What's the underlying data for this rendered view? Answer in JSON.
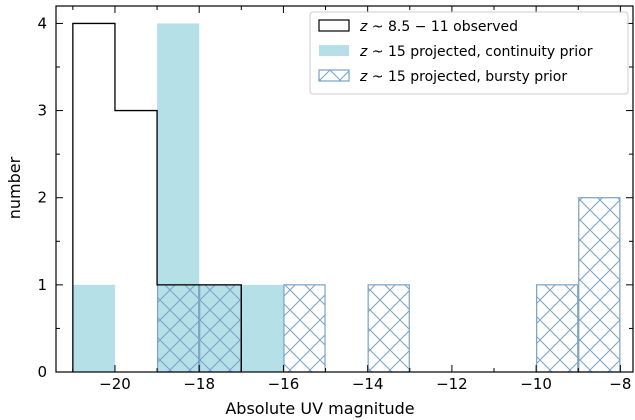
{
  "chart_data": {
    "type": "bar",
    "xlabel": "Absolute UV magnitude",
    "ylabel": "number",
    "xlim": [
      -21.4,
      -7.7
    ],
    "ylim": [
      0,
      4.2
    ],
    "xticks": [
      -20,
      -18,
      -16,
      -14,
      -12,
      -10,
      -8
    ],
    "xtick_labels": [
      "−20",
      "−18",
      "−16",
      "−14",
      "−12",
      "−10",
      "−8"
    ],
    "yticks": [
      0,
      1,
      2,
      3,
      4
    ],
    "ytick_labels": [
      "0",
      "1",
      "2",
      "3",
      "4"
    ],
    "bin_edges": [
      -21,
      -20,
      -19,
      -18,
      -17,
      -16,
      -15,
      -14,
      -13,
      -12,
      -11,
      -10,
      -9,
      -8
    ],
    "legend_position": "upper-right",
    "series": [
      {
        "name": "z ~ 8.5 − 11 observed",
        "style": "step",
        "color": "#000000",
        "bins": [
          [
            -21,
            -20,
            4
          ],
          [
            -20,
            -19,
            3
          ],
          [
            -19,
            -18,
            1
          ],
          [
            -18,
            -17,
            1
          ]
        ]
      },
      {
        "name": "z ~ 15 projected, continuity prior",
        "style": "filled",
        "color": "#b6e0e8",
        "bins": [
          [
            -21,
            -20,
            1
          ],
          [
            -19,
            -18,
            4
          ],
          [
            -18,
            -17,
            1
          ],
          [
            -17,
            -16,
            1
          ]
        ]
      },
      {
        "name": "z ~ 15 projected, bursty prior",
        "style": "hatched",
        "color": "#7aa2c4",
        "bins": [
          [
            -19,
            -18,
            1
          ],
          [
            -18,
            -17,
            1
          ],
          [
            -16,
            -15,
            1
          ],
          [
            -14,
            -13,
            1
          ],
          [
            -10,
            -9,
            1
          ],
          [
            -9,
            -8,
            2
          ]
        ]
      }
    ],
    "legend": [
      {
        "prefix": "z",
        "rest": " ~ 8.5 − 11 observed"
      },
      {
        "prefix": "z",
        "rest": " ~ 15 projected, continuity prior"
      },
      {
        "prefix": "z",
        "rest": " ~ 15 projected, bursty prior"
      }
    ]
  }
}
